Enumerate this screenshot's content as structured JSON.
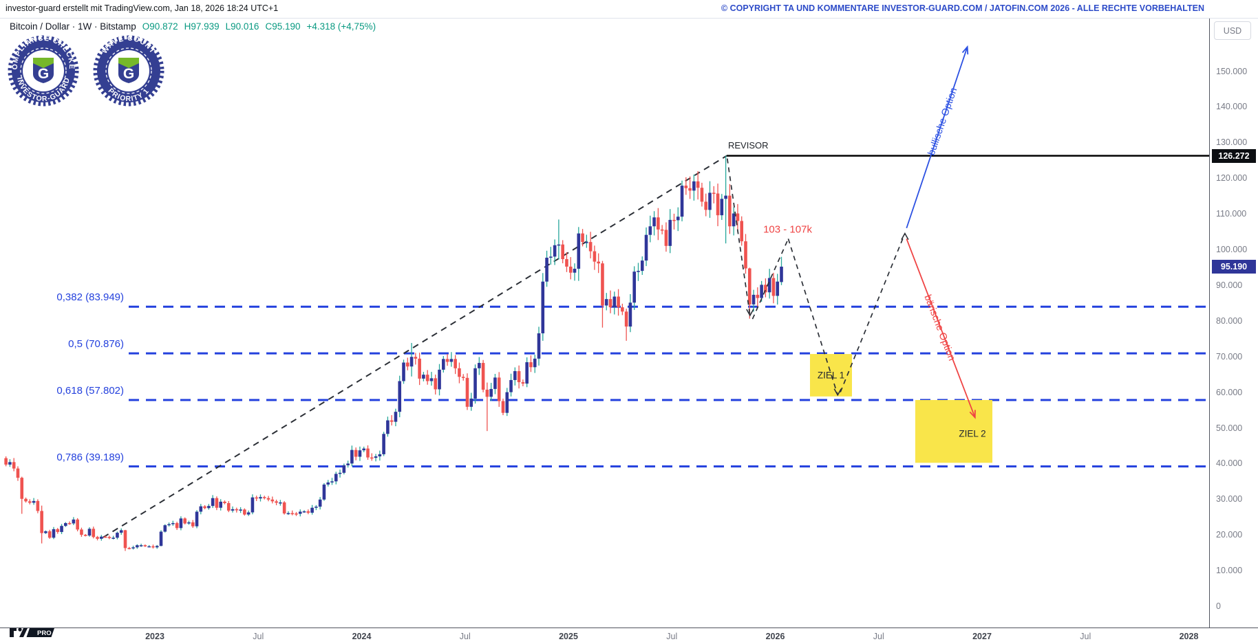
{
  "header": {
    "created_line": "investor-guard erstellt mit TradingView.com, Jan 18, 2026 18:24 UTC+1",
    "copyright": "© COPYRIGHT TA UND KOMMENTARE INVESTOR-GUARD.COM / JATOFIN.COM 2026 - ALLE RECHTE VORBEHALTEN"
  },
  "legend": {
    "symbol": "Bitcoin / Dollar · 1W · Bitstamp",
    "open": "O90.872",
    "high": "H97.939",
    "low": "L90.016",
    "close": "C95.190",
    "change": "+4.318 (+4,75%)"
  },
  "badges": [
    {
      "top_text": "COMPLIANCE CHECKED",
      "bottom_text": "INVESTOR-GUARD",
      "letter": "G"
    },
    {
      "top_text": "WAVE COUNT",
      "bottom_text": "PRIORITY 1",
      "letter": "G"
    }
  ],
  "price_axis": {
    "currency": "USD",
    "ticks": [
      {
        "p": 150,
        "label": "150.000"
      },
      {
        "p": 140,
        "label": "140.000"
      },
      {
        "p": 130,
        "label": "130.000"
      },
      {
        "p": 120,
        "label": "120.000"
      },
      {
        "p": 110,
        "label": "110.000"
      },
      {
        "p": 100,
        "label": "100.000"
      },
      {
        "p": 90,
        "label": "90.000"
      },
      {
        "p": 80,
        "label": "80.000"
      },
      {
        "p": 70,
        "label": "70.000"
      },
      {
        "p": 60,
        "label": "60.000"
      },
      {
        "p": 50,
        "label": "50.000"
      },
      {
        "p": 40,
        "label": "40.000"
      },
      {
        "p": 30,
        "label": "30.000"
      },
      {
        "p": 20,
        "label": "20.000"
      },
      {
        "p": 10,
        "label": "10.000"
      },
      {
        "p": 0,
        "label": "0"
      }
    ],
    "revisor_badge": {
      "label": "126.272",
      "p": 126.272,
      "bg": "#0c0e12"
    },
    "last_badge": {
      "label": "95.190",
      "p": 95.19,
      "bg": "#2f3699"
    }
  },
  "time_axis": {
    "labels": [
      {
        "t": 2023,
        "label": "2023",
        "year": true
      },
      {
        "t": 2023.5,
        "label": "Jul",
        "year": false
      },
      {
        "t": 2024,
        "label": "2024",
        "year": true
      },
      {
        "t": 2024.5,
        "label": "Jul",
        "year": false
      },
      {
        "t": 2025,
        "label": "2025",
        "year": true
      },
      {
        "t": 2025.5,
        "label": "Jul",
        "year": false
      },
      {
        "t": 2026,
        "label": "2026",
        "year": true
      },
      {
        "t": 2026.5,
        "label": "Jul",
        "year": false
      },
      {
        "t": 2027,
        "label": "2027",
        "year": true
      },
      {
        "t": 2027.5,
        "label": "Jul",
        "year": false
      },
      {
        "t": 2028,
        "label": "2028",
        "year": true
      }
    ]
  },
  "annotations": {
    "revisor": {
      "text": "REVISOR",
      "t": 2025.772,
      "p": 129.3
    },
    "range_label": {
      "text": "103 - 107k",
      "t": 2026.06,
      "p": 105.6
    },
    "ziel1": {
      "text": "ZIEL 1"
    },
    "ziel2": {
      "text": "ZIEL 2"
    },
    "bull": {
      "text": "bullische Option",
      "t": 2026.81,
      "p": 135.9
    },
    "bear": {
      "text": "bärische Option",
      "t": 2026.795,
      "p": 78.0
    }
  },
  "logo": {
    "pro_label": "PRO"
  },
  "chart_data": {
    "type": "candlestick",
    "symbol": "Bitcoin / Dollar",
    "interval": "1W",
    "exchange": "Bitstamp",
    "last_ohlc": {
      "open": 90.872,
      "high": 97.939,
      "low": 90.016,
      "close": 95.19,
      "change": "+4.318 (+4,75%)"
    },
    "y_unit": "thousand USD",
    "ylim": [
      0,
      158
    ],
    "xlim_years": [
      2022.2,
      2028.25
    ],
    "grid": false,
    "colors": {
      "up_body": "#2f3699",
      "down_body": "#ef5350",
      "up_wick": "#26a69a",
      "down_wick": "#ef5350",
      "fib": "#2340dd",
      "projection": "#2b2f36",
      "bull_arrow": "#2b50e2",
      "bear_arrow": "#ef4444",
      "target_box": "#f9e54a",
      "revisor_line": "#000000"
    },
    "first_week_year": 2022.28,
    "first_open": 41.5,
    "closes": [
      39.7,
      40.4,
      38.6,
      36.0,
      30.1,
      29.4,
      29.0,
      29.5,
      26.7,
      20.5,
      21.0,
      19.2,
      21.6,
      20.8,
      22.5,
      23.3,
      23.2,
      24.3,
      21.5,
      20.0,
      19.8,
      21.7,
      19.4,
      18.9,
      19.5,
      19.4,
      19.1,
      19.2,
      20.6,
      21.3,
      16.3,
      16.2,
      16.5,
      17.1,
      17.1,
      16.8,
      16.8,
      16.5,
      16.9,
      20.9,
      22.7,
      23.0,
      23.3,
      21.9,
      24.6,
      23.2,
      23.5,
      22.4,
      26.5,
      28.0,
      27.5,
      28.1,
      30.3,
      27.6,
      29.3,
      28.9,
      26.8,
      27.2,
      26.9,
      27.1,
      25.7,
      26.3,
      30.5,
      30.2,
      30.6,
      30.3,
      29.9,
      29.4,
      29.0,
      29.1,
      26.0,
      26.1,
      26.0,
      25.9,
      26.5,
      26.6,
      26.2,
      27.6,
      27.9,
      29.9,
      34.1,
      34.7,
      35.0,
      37.1,
      37.4,
      39.5,
      40.0,
      43.8,
      41.9,
      43.7,
      44.2,
      41.7,
      41.6,
      42.0,
      42.6,
      48.3,
      52.1,
      51.7,
      54.5,
      63.1,
      68.3,
      67.2,
      69.9,
      69.4,
      63.8,
      64.9,
      63.1,
      63.9,
      60.8,
      66.3,
      69.3,
      68.5,
      69.3,
      66.7,
      64.3,
      64.0,
      55.9,
      58.2,
      66.7,
      68.2,
      60.7,
      58.7,
      60.9,
      64.1,
      57.5,
      54.2,
      60.0,
      63.4,
      65.9,
      62.8,
      62.4,
      68.4,
      67.0,
      69.4,
      76.5,
      91.0,
      97.7,
      98.0,
      101.2,
      101.4,
      97.3,
      95.2,
      93.5,
      94.6,
      104.5,
      102.1,
      102.1,
      99.5,
      96.6,
      96.1,
      84.3,
      86.1,
      83.8,
      86.8,
      83.8,
      82.6,
      78.4,
      85.1,
      93.8,
      94.0,
      96.9,
      104.1,
      106.5,
      109.0,
      105.6,
      105.5,
      101.0,
      108.3,
      108.2,
      109.2,
      117.9,
      117.2,
      116.5,
      119.1,
      117.3,
      113.4,
      111.1,
      115.9,
      115.7,
      109.6,
      114.2,
      115.1,
      106.5,
      110.1,
      108.0,
      102.3,
      94.7,
      84.6,
      87.3,
      86.4,
      90.1,
      88.0,
      92.0,
      87.0,
      91.0,
      95.19
    ],
    "open_overrides": {
      "195": 90.872
    },
    "wick_overrides": {
      "4": [
        36.3,
        25.9
      ],
      "9": [
        28.2,
        17.6
      ],
      "30": [
        21.4,
        15.5
      ],
      "39": [
        21.3,
        16.8
      ],
      "102": [
        73.8,
        64.4
      ],
      "121": [
        62.7,
        49.1
      ],
      "135": [
        93.4,
        74.4
      ],
      "139": [
        108.4,
        97.2
      ],
      "144": [
        106.3,
        91.2
      ],
      "150": [
        96.8,
        78.1
      ],
      "156": [
        83.4,
        74.4
      ],
      "181": [
        126.272,
        101.7
      ],
      "187": [
        94.9,
        80.6
      ],
      "195": [
        97.939,
        90.016
      ]
    },
    "fib_levels": [
      {
        "label": "0,382 (83.949)",
        "price": 83.949
      },
      {
        "label": "0,5 (70.876)",
        "price": 70.876
      },
      {
        "label": "0,618 (57.802)",
        "price": 57.802
      },
      {
        "label": "0,786 (39.189)",
        "price": 39.189
      }
    ],
    "revisor_level": {
      "price": 126.272,
      "from_t": 2025.765
    },
    "trendline": {
      "pts": [
        [
          2022.75,
          19.3
        ],
        [
          2025.765,
          126.27
        ]
      ]
    },
    "projection_segments": [
      {
        "pts": [
          [
            2025.768,
            125.5
          ],
          [
            2025.878,
            81.5
          ]
        ],
        "arrow": "down"
      },
      {
        "pts": [
          [
            2025.89,
            80.5
          ],
          [
            2026.063,
            103.0
          ]
        ],
        "arrow": null
      },
      {
        "pts": [
          [
            2026.063,
            103.0
          ],
          [
            2026.302,
            59.2
          ]
        ],
        "arrow": "down"
      },
      {
        "pts": [
          [
            2026.315,
            60.0
          ],
          [
            2026.627,
            104.5
          ]
        ],
        "arrow": "up"
      }
    ],
    "bull_arrow": {
      "pts": [
        [
          2026.635,
          106.0
        ],
        [
          2026.929,
          156.8
        ]
      ]
    },
    "bear_arrow": {
      "pts": [
        [
          2026.635,
          103.0
        ],
        [
          2026.966,
          52.9
        ]
      ]
    },
    "target_boxes": [
      {
        "name": "ZIEL 1",
        "t1": 2026.168,
        "t2": 2026.371,
        "p1": 70.7,
        "p2": 58.8,
        "label_off": [
          0,
          0
        ]
      },
      {
        "name": "ZIEL 2",
        "t1": 2026.677,
        "t2": 2027.05,
        "p1": 57.8,
        "p2": 40.2,
        "label_off": [
          27,
          3
        ]
      }
    ]
  }
}
